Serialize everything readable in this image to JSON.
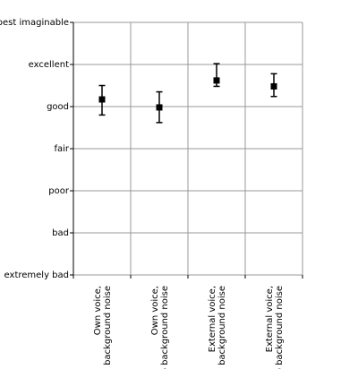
{
  "chart_data": {
    "type": "scatter",
    "title": "",
    "xlabel": "",
    "ylabel": "",
    "y_scale_labels": [
      "extremely bad",
      "bad",
      "poor",
      "fair",
      "good",
      "excellent",
      "best imaginable"
    ],
    "ylim": [
      0,
      6
    ],
    "grid": true,
    "legend": "none",
    "categories": [
      [
        "Own voice,",
        "background noise"
      ],
      [
        "Own voice,",
        "no background noise"
      ],
      [
        "External voice,",
        "background noise"
      ],
      [
        "External voice,",
        "no background noise"
      ]
    ],
    "values": [
      4.17,
      3.98,
      4.62,
      4.48
    ],
    "error_low": [
      3.8,
      3.62,
      4.48,
      4.24
    ],
    "error_high": [
      4.5,
      4.35,
      5.02,
      4.78
    ],
    "colors": {
      "marker": "#000000",
      "grid": "#999999",
      "axis": "#000000"
    }
  }
}
